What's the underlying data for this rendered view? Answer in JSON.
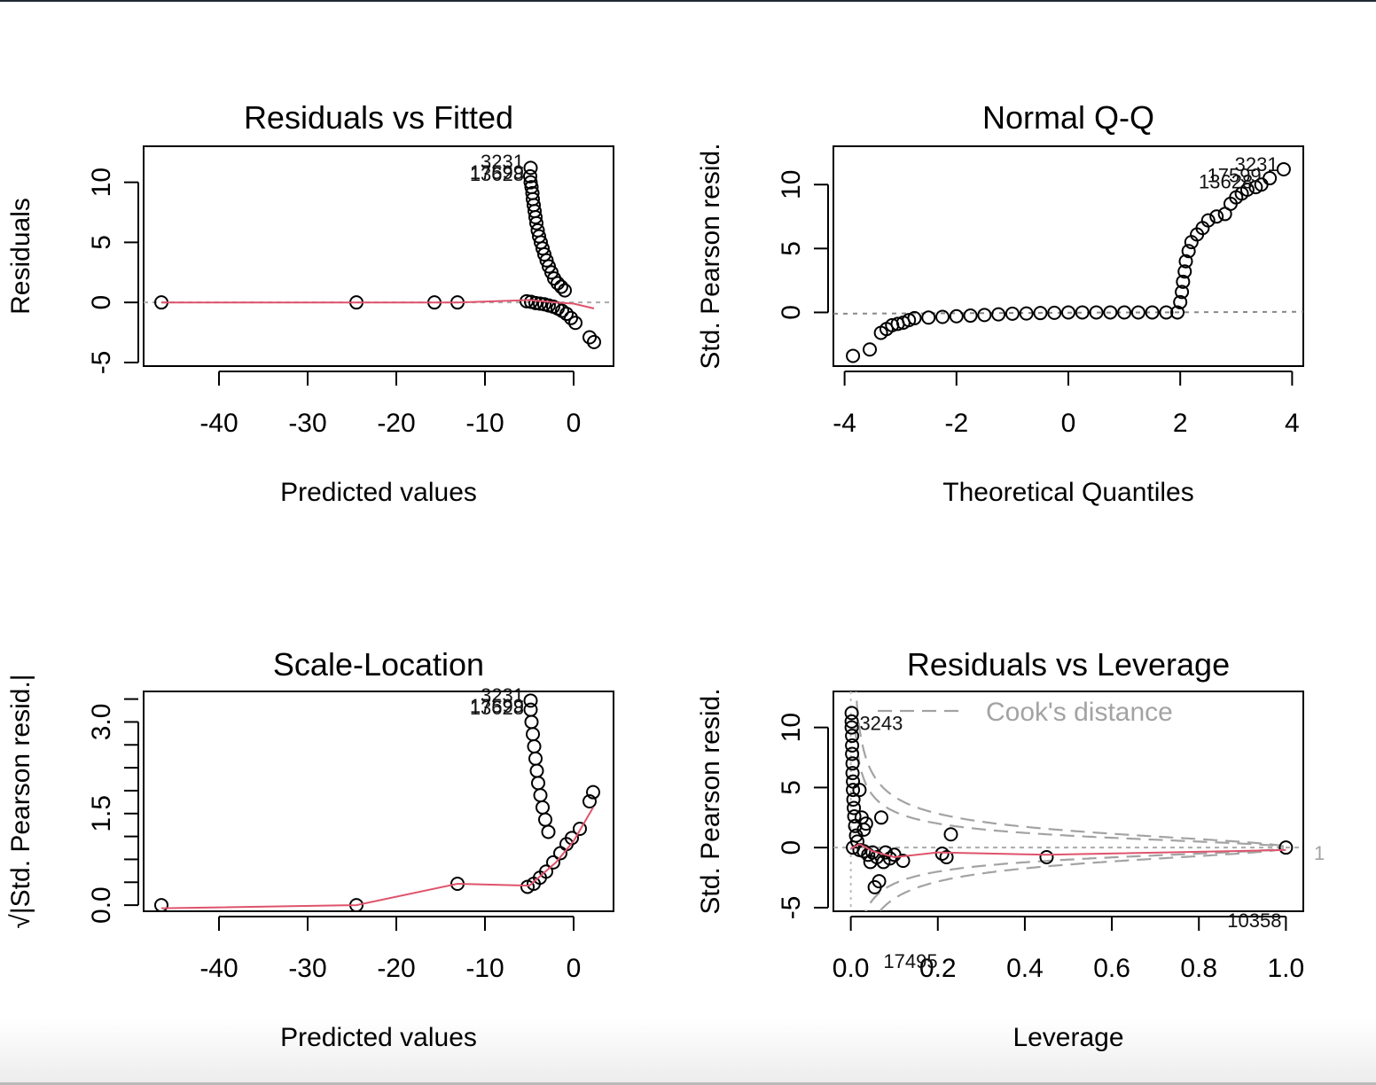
{
  "chart_data": [
    {
      "type": "scatter",
      "title": "Residuals vs Fitted",
      "xlabel": "Predicted values",
      "ylabel": "Residuals",
      "xlim": [
        -48.5,
        4.5
      ],
      "ylim": [
        -5.3,
        13.0
      ],
      "xticks": [
        "-40",
        "-30",
        "-20",
        "-10",
        "0"
      ],
      "xtick_values": [
        -40,
        -30,
        -20,
        -10,
        0
      ],
      "yticks": [
        "-5",
        "0",
        "5",
        "10"
      ],
      "ytick_values": [
        -5,
        0,
        5,
        10
      ],
      "points": [
        [
          -46.5,
          0
        ],
        [
          -24.5,
          0
        ],
        [
          -15.7,
          0
        ],
        [
          -13.1,
          0
        ],
        [
          -4.85,
          11.2
        ],
        [
          -4.9,
          10.5
        ],
        [
          -4.85,
          10.0
        ],
        [
          -4.75,
          9.6
        ],
        [
          -4.65,
          9.1
        ],
        [
          -4.6,
          8.6
        ],
        [
          -4.5,
          8.1
        ],
        [
          -4.4,
          7.6
        ],
        [
          -4.3,
          7.1
        ],
        [
          -4.2,
          6.6
        ],
        [
          -4.05,
          6.0
        ],
        [
          -3.9,
          5.5
        ],
        [
          -3.7,
          5.0
        ],
        [
          -3.5,
          4.5
        ],
        [
          -3.3,
          4.0
        ],
        [
          -3.05,
          3.5
        ],
        [
          -2.8,
          3.0
        ],
        [
          -2.5,
          2.5
        ],
        [
          -2.2,
          2.0
        ],
        [
          -1.8,
          1.6
        ],
        [
          -1.4,
          1.3
        ],
        [
          -1.0,
          1.0
        ],
        [
          -5.3,
          0.1
        ],
        [
          -4.8,
          0.05
        ],
        [
          -4.3,
          -0.05
        ],
        [
          -3.8,
          -0.1
        ],
        [
          -3.3,
          -0.15
        ],
        [
          -2.8,
          -0.25
        ],
        [
          -2.3,
          -0.35
        ],
        [
          -1.8,
          -0.5
        ],
        [
          -1.3,
          -0.7
        ],
        [
          -0.8,
          -0.95
        ],
        [
          -0.3,
          -1.3
        ],
        [
          0.2,
          -1.7
        ],
        [
          1.8,
          -2.9
        ],
        [
          2.3,
          -3.3
        ]
      ],
      "smooth_line": [
        [
          -46.5,
          0
        ],
        [
          -24.5,
          0
        ],
        [
          -13.1,
          0
        ],
        [
          -5,
          0.2
        ],
        [
          -2,
          0
        ],
        [
          0,
          -0.1
        ],
        [
          2.3,
          -0.5
        ]
      ],
      "reference_line": 0,
      "point_labels": [
        "3231",
        "17599",
        "13628"
      ]
    },
    {
      "type": "scatter",
      "title": "Normal Q-Q",
      "xlabel": "Theoretical Quantiles",
      "ylabel": "Std. Pearson resid.",
      "xlim": [
        -4.2,
        4.2
      ],
      "ylim": [
        -4.2,
        13.0
      ],
      "xticks": [
        "-4",
        "-2",
        "0",
        "2",
        "4"
      ],
      "xtick_values": [
        -4,
        -2,
        0,
        2,
        4
      ],
      "yticks": [
        "0",
        "5",
        "10"
      ],
      "ytick_values": [
        0,
        5,
        10
      ],
      "points": [
        [
          -3.85,
          -3.4
        ],
        [
          -3.55,
          -2.9
        ],
        [
          -3.35,
          -1.6
        ],
        [
          -3.25,
          -1.3
        ],
        [
          -3.15,
          -1.0
        ],
        [
          -3.05,
          -0.9
        ],
        [
          -2.95,
          -0.8
        ],
        [
          -2.85,
          -0.6
        ],
        [
          -2.75,
          -0.45
        ],
        [
          -2.5,
          -0.4
        ],
        [
          -2.25,
          -0.35
        ],
        [
          -2.0,
          -0.3
        ],
        [
          -1.75,
          -0.25
        ],
        [
          -1.5,
          -0.2
        ],
        [
          -1.25,
          -0.15
        ],
        [
          -1.0,
          -0.1
        ],
        [
          -0.75,
          -0.08
        ],
        [
          -0.5,
          -0.05
        ],
        [
          -0.25,
          -0.03
        ],
        [
          0,
          0
        ],
        [
          0.25,
          0
        ],
        [
          0.5,
          0
        ],
        [
          0.75,
          0
        ],
        [
          1.0,
          0
        ],
        [
          1.25,
          0
        ],
        [
          1.5,
          0
        ],
        [
          1.75,
          0
        ],
        [
          1.95,
          0
        ],
        [
          2.0,
          0.8
        ],
        [
          2.03,
          1.6
        ],
        [
          2.05,
          2.4
        ],
        [
          2.08,
          3.2
        ],
        [
          2.1,
          4.0
        ],
        [
          2.15,
          4.8
        ],
        [
          2.2,
          5.5
        ],
        [
          2.3,
          6.1
        ],
        [
          2.4,
          6.6
        ],
        [
          2.5,
          7.2
        ],
        [
          2.65,
          7.5
        ],
        [
          2.8,
          7.7
        ],
        [
          2.9,
          8.5
        ],
        [
          3.0,
          9.0
        ],
        [
          3.1,
          9.3
        ],
        [
          3.2,
          9.6
        ],
        [
          3.35,
          9.8
        ],
        [
          3.45,
          10.0
        ],
        [
          3.6,
          10.5
        ],
        [
          3.85,
          11.2
        ]
      ],
      "reference_line": [
        [
          -4.2,
          -0.1
        ],
        [
          4.2,
          0.05
        ]
      ],
      "point_labels": [
        "3231",
        "17599",
        "13628"
      ]
    },
    {
      "type": "scatter",
      "title": "Scale-Location",
      "xlabel": "Predicted values",
      "ylabel": "√|Std. Pearson resid.|",
      "xlim": [
        -48.5,
        4.5
      ],
      "ylim": [
        -0.1,
        3.5
      ],
      "xticks": [
        "-40",
        "-30",
        "-20",
        "-10",
        "0"
      ],
      "xtick_values": [
        -40,
        -30,
        -20,
        -10,
        0
      ],
      "yticks": [
        "0.0",
        "1.5",
        "3.0"
      ],
      "ytick_values": [
        0.0,
        1.5,
        3.0
      ],
      "points": [
        [
          -46.5,
          0
        ],
        [
          -24.5,
          0
        ],
        [
          -13.1,
          0.35
        ],
        [
          -4.85,
          3.35
        ],
        [
          -4.85,
          3.2
        ],
        [
          -4.75,
          3.0
        ],
        [
          -4.6,
          2.8
        ],
        [
          -4.45,
          2.6
        ],
        [
          -4.3,
          2.4
        ],
        [
          -4.15,
          2.2
        ],
        [
          -4.0,
          2.0
        ],
        [
          -3.75,
          1.8
        ],
        [
          -3.5,
          1.6
        ],
        [
          -3.2,
          1.4
        ],
        [
          -2.85,
          1.2
        ],
        [
          -5.2,
          0.3
        ],
        [
          -4.5,
          0.35
        ],
        [
          -3.8,
          0.45
        ],
        [
          -3.1,
          0.55
        ],
        [
          -2.3,
          0.7
        ],
        [
          -1.5,
          0.85
        ],
        [
          -0.8,
          1.0
        ],
        [
          -0.2,
          1.1
        ],
        [
          0.7,
          1.25
        ],
        [
          1.8,
          1.7
        ],
        [
          2.2,
          1.85
        ]
      ],
      "smooth_line": [
        [
          -46.5,
          -0.05
        ],
        [
          -24.5,
          0
        ],
        [
          -13.1,
          0.35
        ],
        [
          -5,
          0.32
        ],
        [
          -2,
          0.7
        ],
        [
          0,
          1.05
        ],
        [
          2.2,
          1.6
        ]
      ],
      "point_labels": [
        "3231",
        "17599",
        "13628"
      ]
    },
    {
      "type": "scatter",
      "title": "Residuals vs Leverage",
      "xlabel": "Leverage",
      "ylabel": "Std. Pearson resid.",
      "xlim": [
        -0.04,
        1.04
      ],
      "ylim": [
        -5.3,
        13.0
      ],
      "xticks": [
        "0.0",
        "0.2",
        "0.4",
        "0.6",
        "0.8",
        "1.0"
      ],
      "xtick_values": [
        0,
        0.2,
        0.4,
        0.6,
        0.8,
        1.0
      ],
      "yticks": [
        "-5",
        "0",
        "5",
        "10"
      ],
      "ytick_values": [
        -5,
        0,
        5,
        10
      ],
      "points": [
        [
          0.002,
          11.2
        ],
        [
          0.002,
          10.5
        ],
        [
          0.002,
          10.0
        ],
        [
          0.003,
          9.3
        ],
        [
          0.003,
          8.5
        ],
        [
          0.003,
          7.8
        ],
        [
          0.004,
          7.0
        ],
        [
          0.004,
          6.2
        ],
        [
          0.005,
          5.5
        ],
        [
          0.005,
          4.8
        ],
        [
          0.006,
          4.0
        ],
        [
          0.007,
          3.3
        ],
        [
          0.008,
          2.6
        ],
        [
          0.01,
          1.8
        ],
        [
          0.012,
          1.0
        ],
        [
          0.015,
          0.5
        ],
        [
          0.02,
          4.8
        ],
        [
          0.025,
          2.5
        ],
        [
          0.03,
          1.5
        ],
        [
          0.035,
          2.0
        ],
        [
          0.07,
          2.5
        ],
        [
          0.005,
          0
        ],
        [
          0.02,
          -0.2
        ],
        [
          0.03,
          -0.3
        ],
        [
          0.04,
          -0.6
        ],
        [
          0.045,
          -1.2
        ],
        [
          0.05,
          -0.4
        ],
        [
          0.055,
          -3.3
        ],
        [
          0.06,
          -0.8
        ],
        [
          0.065,
          -2.8
        ],
        [
          0.075,
          -1.2
        ],
        [
          0.08,
          -0.4
        ],
        [
          0.09,
          -0.9
        ],
        [
          0.1,
          -0.6
        ],
        [
          0.12,
          -1.1
        ],
        [
          0.21,
          -0.5
        ],
        [
          0.22,
          -0.8
        ],
        [
          0.23,
          1.1
        ],
        [
          0.45,
          -0.8
        ],
        [
          1.0,
          0
        ]
      ],
      "smooth_line": [
        [
          0.0,
          -0.1
        ],
        [
          0.02,
          0.3
        ],
        [
          0.05,
          -0.3
        ],
        [
          0.1,
          -0.8
        ],
        [
          0.2,
          -0.4
        ],
        [
          0.45,
          -0.6
        ],
        [
          1.0,
          -0.2
        ]
      ],
      "reference_line": 0,
      "legend": "Cook's distance",
      "contour_label": "1",
      "point_labels": [
        "3243",
        "17495",
        "10358"
      ]
    }
  ]
}
